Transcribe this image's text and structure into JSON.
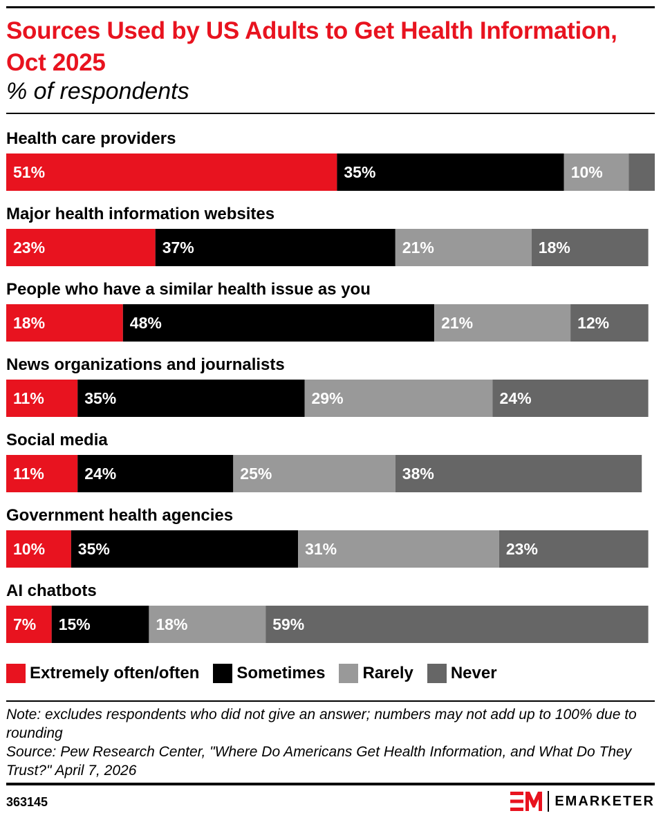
{
  "title": "Sources Used by US Adults to Get Health Information, Oct 2025",
  "subtitle": "% of respondents",
  "colors": {
    "extremely_often": "#e8131f",
    "sometimes": "#000000",
    "rarely": "#999999",
    "never": "#666666",
    "brand": "#e8131f"
  },
  "chart_data": {
    "type": "bar",
    "orientation": "horizontal",
    "stacked": true,
    "unit": "%",
    "categories": [
      "Health care providers",
      "Major health information websites",
      "People who have a similar health issue as you",
      "News organizations and journalists",
      "Social media",
      "Government health agencies",
      "AI chatbots"
    ],
    "series": [
      {
        "name": "Extremely often/often",
        "color": "#e8131f",
        "values": [
          51,
          23,
          18,
          11,
          11,
          10,
          7
        ]
      },
      {
        "name": "Sometimes",
        "color": "#000000",
        "values": [
          35,
          37,
          48,
          35,
          24,
          35,
          15
        ]
      },
      {
        "name": "Rarely",
        "color": "#999999",
        "values": [
          10,
          21,
          21,
          29,
          25,
          31,
          18
        ]
      },
      {
        "name": "Never",
        "color": "#666666",
        "values": [
          4,
          18,
          12,
          24,
          38,
          23,
          59
        ]
      }
    ],
    "data_labels": [
      [
        "51%",
        "35%",
        "10%",
        ""
      ],
      [
        "23%",
        "37%",
        "21%",
        "18%"
      ],
      [
        "18%",
        "48%",
        "21%",
        "12%"
      ],
      [
        "11%",
        "35%",
        "29%",
        "24%"
      ],
      [
        "11%",
        "24%",
        "25%",
        "38%"
      ],
      [
        "10%",
        "35%",
        "31%",
        "23%"
      ],
      [
        "7%",
        "15%",
        "18%",
        "59%"
      ]
    ],
    "legend_position": "bottom-left",
    "grid": false
  },
  "legend": [
    {
      "label": "Extremely often/often",
      "color": "#e8131f"
    },
    {
      "label": "Sometimes",
      "color": "#000000"
    },
    {
      "label": "Rarely",
      "color": "#999999"
    },
    {
      "label": "Never",
      "color": "#666666"
    }
  ],
  "note": "Note: excludes respondents who did not give an answer; numbers may not add up to 100% due to rounding",
  "source": "Source: Pew Research Center, \"Where Do Americans Get Health Information, and What Do They Trust?\" April 7, 2026",
  "chart_id": "363145",
  "brand": {
    "mark": "EM",
    "name": "EMARKETER",
    "logo_icon": "emarketer-logo-icon"
  }
}
